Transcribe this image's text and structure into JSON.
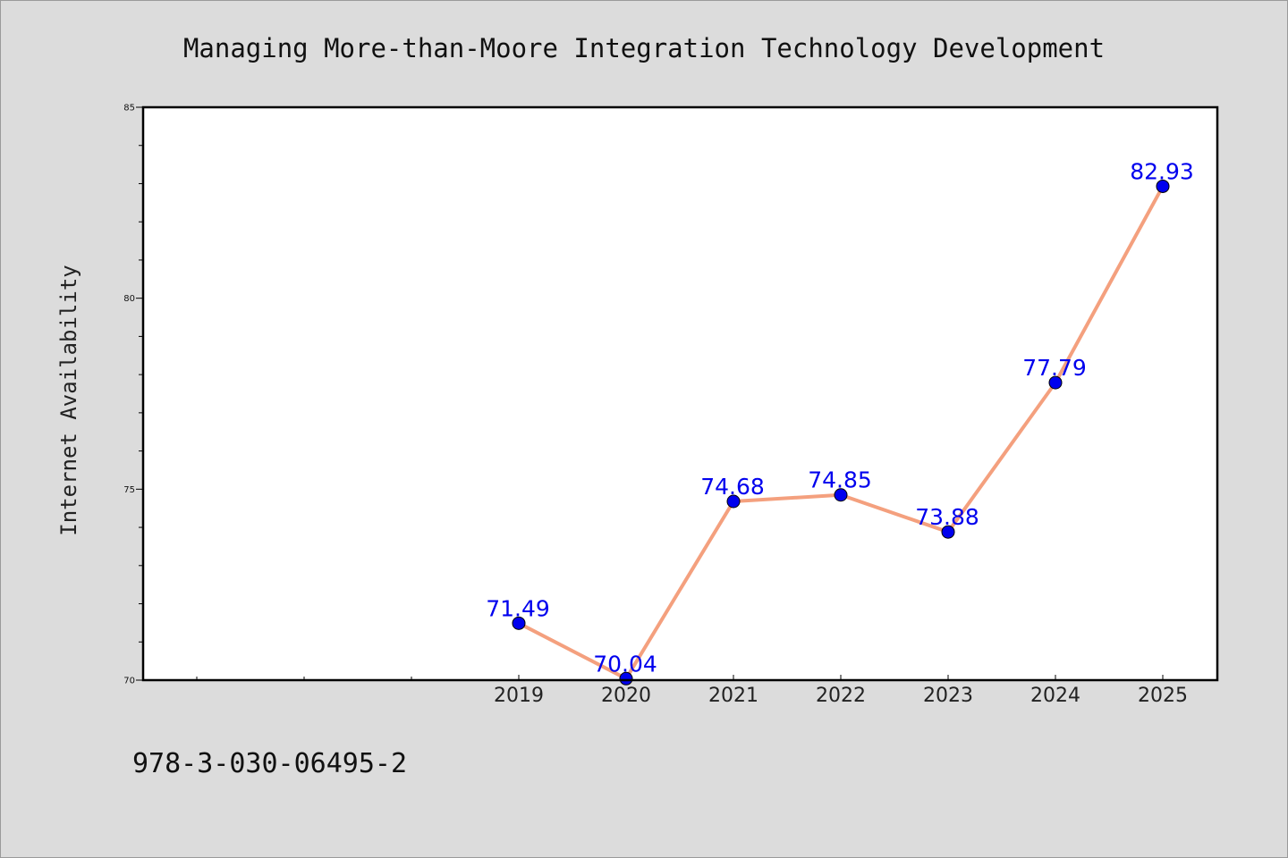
{
  "chart_data": {
    "type": "line",
    "title": "Managing More-than-Moore Integration Technology Development",
    "xlabel": "",
    "ylabel": "Internet Availability",
    "categories": [
      "2019",
      "2020",
      "2021",
      "2022",
      "2023",
      "2024",
      "2025"
    ],
    "series": [
      {
        "values": [
          71.49,
          70.04,
          74.68,
          74.85,
          73.88,
          77.79,
          82.93
        ],
        "labels": [
          "71.49",
          "70.04",
          "74.68",
          "74.85",
          "73.88",
          "77.79",
          "82.93"
        ],
        "line_color": "#f4a07e",
        "marker_color": "#0000ee"
      }
    ],
    "ylim": [
      70,
      85
    ],
    "yticks": [
      "70",
      "75",
      "80",
      "85"
    ],
    "grid": false,
    "legend": "none"
  },
  "footer": {
    "isbn": "978-3-030-06495-2"
  }
}
